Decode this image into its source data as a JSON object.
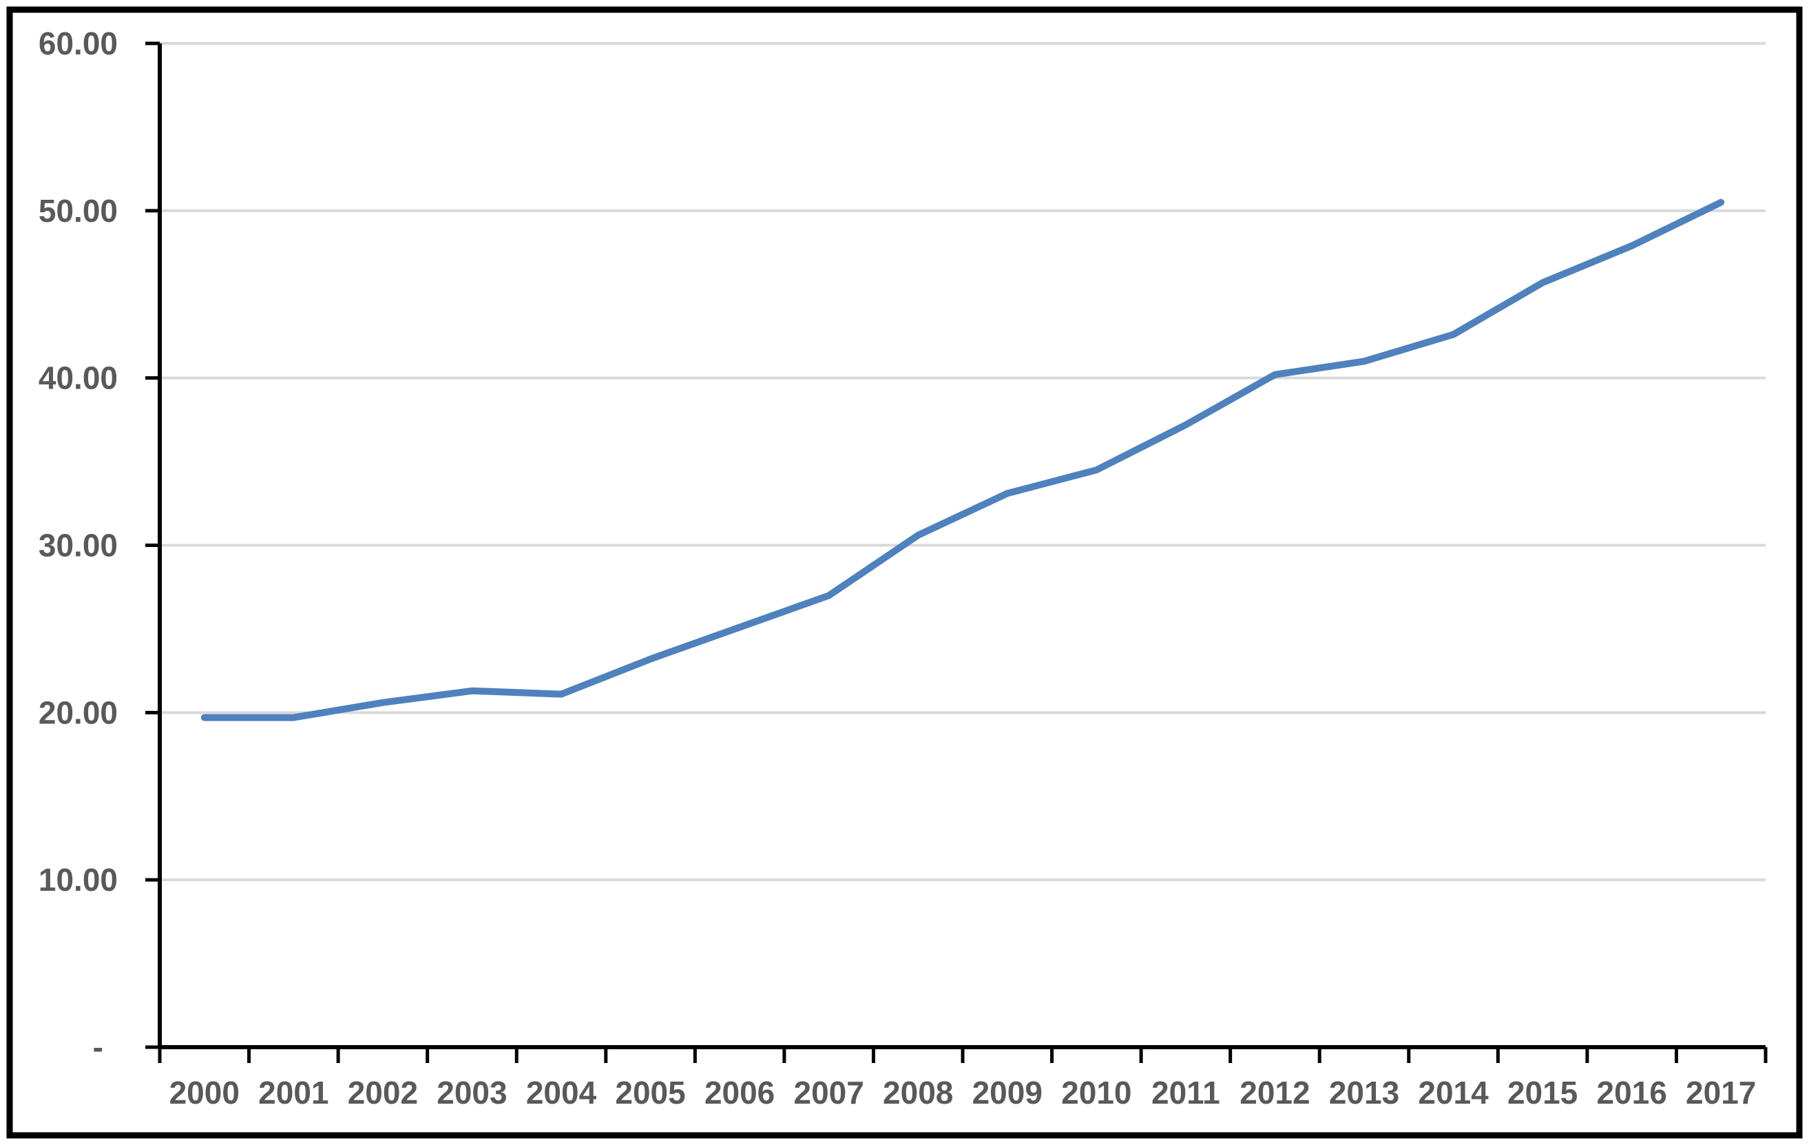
{
  "chart_data": {
    "type": "line",
    "title": "",
    "categories": [
      "2000",
      "2001",
      "2002",
      "2003",
      "2004",
      "2005",
      "2006",
      "2007",
      "2008",
      "2009",
      "2010",
      "2011",
      "2012",
      "2013",
      "2014",
      "2015",
      "2016",
      "2017"
    ],
    "series": [
      {
        "name": "value",
        "values": [
          19.7,
          19.7,
          20.6,
          21.3,
          21.1,
          23.2,
          25.1,
          27.0,
          30.6,
          33.1,
          34.5,
          37.2,
          40.2,
          41.0,
          42.6,
          45.7,
          47.9,
          50.5
        ]
      }
    ],
    "xlabel": "",
    "ylabel": "",
    "ylim": [
      0,
      60
    ],
    "y_ticks": [
      {
        "value": 60,
        "label": "60.00"
      },
      {
        "value": 50,
        "label": "50.00"
      },
      {
        "value": 40,
        "label": "40.00"
      },
      {
        "value": 30,
        "label": "30.00"
      },
      {
        "value": 20,
        "label": "20.00"
      },
      {
        "value": 10,
        "label": "10.00"
      },
      {
        "value": 0,
        "label": "-"
      }
    ],
    "grid": true,
    "legend_position": "none",
    "colors": {
      "line": "#4F81BD",
      "gridline": "#D9D9D9",
      "axis": "#000000",
      "tick": "#000000",
      "label": "#595959",
      "border": "#000000",
      "background": "#FFFFFF"
    }
  }
}
